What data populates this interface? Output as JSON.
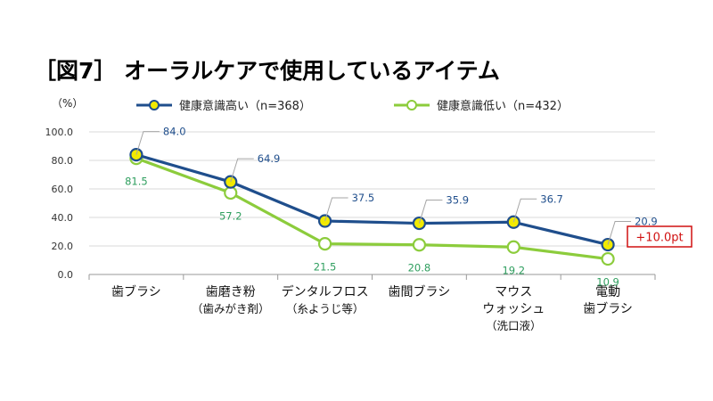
{
  "title": "［図7］ オーラルケアで使用しているアイテム",
  "unit_label": "（%）",
  "colors": {
    "high": "#1f4e8c",
    "low": "#8ccc3c",
    "marker_fill": "#f2ea00",
    "low_label": "#2e9e5e",
    "diff": "#d01010"
  },
  "annotation": "+10.0pt",
  "chart_data": {
    "type": "line",
    "ylim": [
      0,
      100
    ],
    "yticks": [
      "100.0",
      "80.0",
      "60.0",
      "40.0",
      "20.0",
      "0.0"
    ],
    "categories": [
      [
        "歯ブラシ"
      ],
      [
        "歯磨き粉",
        "（歯みがき剤）"
      ],
      [
        "デンタルフロス",
        "（糸ようじ等）"
      ],
      [
        "歯間ブラシ"
      ],
      [
        "マウス",
        "ウォッシュ",
        "（洗口液）"
      ],
      [
        "電動",
        "歯ブラシ"
      ]
    ],
    "series": [
      {
        "name": "健康意識高い（n=368）",
        "values": [
          84.0,
          64.9,
          37.5,
          35.9,
          36.7,
          20.9
        ],
        "labels": [
          "84.0",
          "64.9",
          "37.5",
          "35.9",
          "36.7",
          "20.9"
        ]
      },
      {
        "name": "健康意識低い（n=432）",
        "values": [
          81.5,
          57.2,
          21.5,
          20.8,
          19.2,
          10.9
        ],
        "labels": [
          "81.5",
          "57.2",
          "21.5",
          "20.8",
          "19.2",
          "10.9"
        ]
      }
    ],
    "grid": true,
    "legend": "top"
  }
}
